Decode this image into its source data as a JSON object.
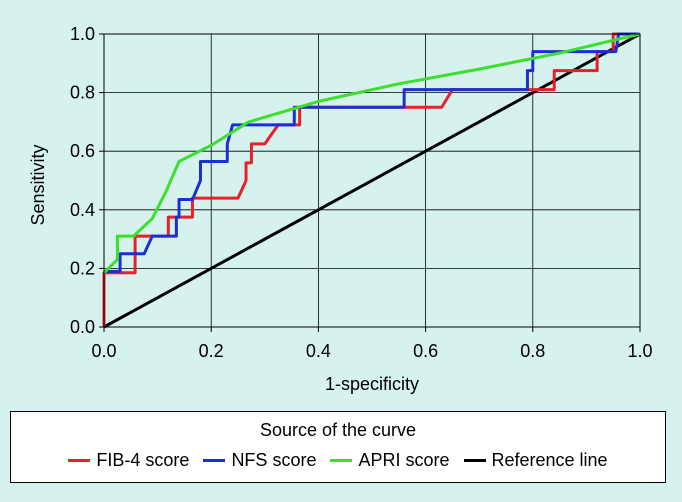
{
  "chart_data": {
    "type": "line",
    "xlabel": "1-specificity",
    "ylabel": "Sensitivity",
    "xlim": [
      0,
      1
    ],
    "ylim": [
      0,
      1
    ],
    "x_ticks": [
      "0.0",
      "0.2",
      "0.4",
      "0.6",
      "0.8",
      "1.0"
    ],
    "y_ticks": [
      "0.0",
      "0.2",
      "0.4",
      "0.6",
      "0.8",
      "1.0"
    ],
    "grid": true,
    "legend_title": "Source of the curve",
    "legend_position": "bottom",
    "series": [
      {
        "name": "FIB-4 score",
        "color": "#e8202a",
        "points": [
          [
            0,
            0
          ],
          [
            0,
            0.185
          ],
          [
            0.058,
            0.185
          ],
          [
            0.058,
            0.31
          ],
          [
            0.12,
            0.31
          ],
          [
            0.12,
            0.375
          ],
          [
            0.165,
            0.375
          ],
          [
            0.165,
            0.44
          ],
          [
            0.25,
            0.44
          ],
          [
            0.265,
            0.5
          ],
          [
            0.265,
            0.56
          ],
          [
            0.275,
            0.56
          ],
          [
            0.275,
            0.625
          ],
          [
            0.3,
            0.625
          ],
          [
            0.325,
            0.69
          ],
          [
            0.365,
            0.69
          ],
          [
            0.365,
            0.75
          ],
          [
            0.63,
            0.75
          ],
          [
            0.65,
            0.81
          ],
          [
            0.84,
            0.81
          ],
          [
            0.84,
            0.875
          ],
          [
            0.92,
            0.875
          ],
          [
            0.92,
            0.94
          ],
          [
            0.95,
            0.94
          ],
          [
            0.95,
            1
          ],
          [
            1,
            1
          ]
        ]
      },
      {
        "name": "NFS score",
        "color": "#1c2fd6",
        "points": [
          [
            0,
            0.19
          ],
          [
            0.03,
            0.19
          ],
          [
            0.03,
            0.25
          ],
          [
            0.075,
            0.25
          ],
          [
            0.09,
            0.31
          ],
          [
            0.135,
            0.31
          ],
          [
            0.135,
            0.375
          ],
          [
            0.14,
            0.375
          ],
          [
            0.14,
            0.435
          ],
          [
            0.165,
            0.435
          ],
          [
            0.18,
            0.5
          ],
          [
            0.18,
            0.565
          ],
          [
            0.23,
            0.565
          ],
          [
            0.23,
            0.625
          ],
          [
            0.24,
            0.69
          ],
          [
            0.355,
            0.69
          ],
          [
            0.355,
            0.75
          ],
          [
            0.56,
            0.75
          ],
          [
            0.56,
            0.81
          ],
          [
            0.79,
            0.81
          ],
          [
            0.79,
            0.875
          ],
          [
            0.8,
            0.875
          ],
          [
            0.8,
            0.94
          ],
          [
            0.955,
            0.94
          ],
          [
            0.96,
            1
          ],
          [
            1,
            1
          ]
        ]
      },
      {
        "name": "APRI score",
        "color": "#3ae02a",
        "points": [
          [
            0,
            0.185
          ],
          [
            0.025,
            0.23
          ],
          [
            0.025,
            0.31
          ],
          [
            0.055,
            0.31
          ],
          [
            0.09,
            0.37
          ],
          [
            0.115,
            0.46
          ],
          [
            0.14,
            0.565
          ],
          [
            0.2,
            0.62
          ],
          [
            0.27,
            0.7
          ],
          [
            0.4,
            0.77
          ],
          [
            0.55,
            0.83
          ],
          [
            0.7,
            0.88
          ],
          [
            0.85,
            0.935
          ],
          [
            1,
            1
          ]
        ]
      },
      {
        "name": "Reference line",
        "color": "#000000",
        "points": [
          [
            0,
            0
          ],
          [
            1,
            1
          ]
        ]
      }
    ]
  }
}
